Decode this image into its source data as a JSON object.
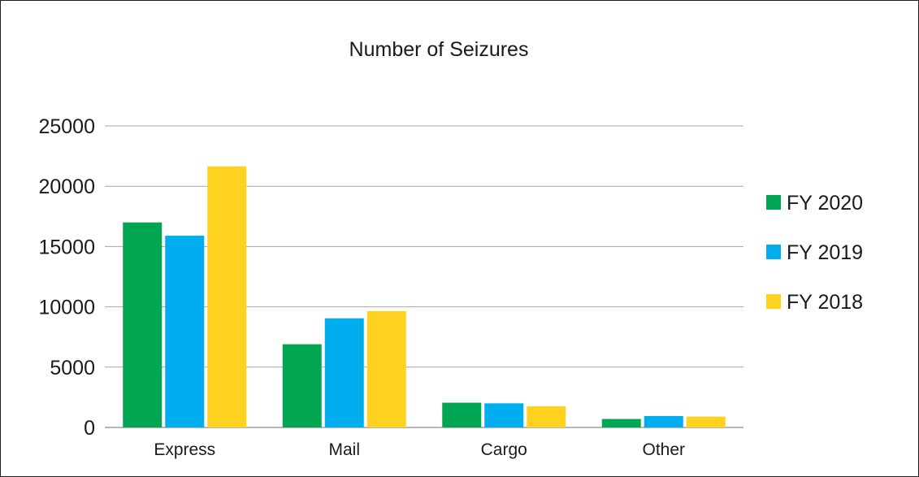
{
  "chart_data": {
    "type": "bar",
    "title": "Number of Seizures",
    "xlabel": "",
    "ylabel": "",
    "categories": [
      "Express",
      "Mail",
      "Cargo",
      "Other"
    ],
    "series": [
      {
        "name": "FY 2020",
        "color": "#00a651",
        "values": [
          17000,
          6900,
          2050,
          700
        ]
      },
      {
        "name": "FY 2019",
        "color": "#00aeef",
        "values": [
          15900,
          9050,
          2000,
          950
        ]
      },
      {
        "name": "FY 2018",
        "color": "#ffd21f",
        "values": [
          21650,
          9650,
          1750,
          900
        ]
      }
    ],
    "ylim": [
      0,
      25000
    ],
    "yticks": [
      0,
      5000,
      10000,
      15000,
      20000,
      25000
    ],
    "grid": true,
    "legend_position": "right"
  }
}
